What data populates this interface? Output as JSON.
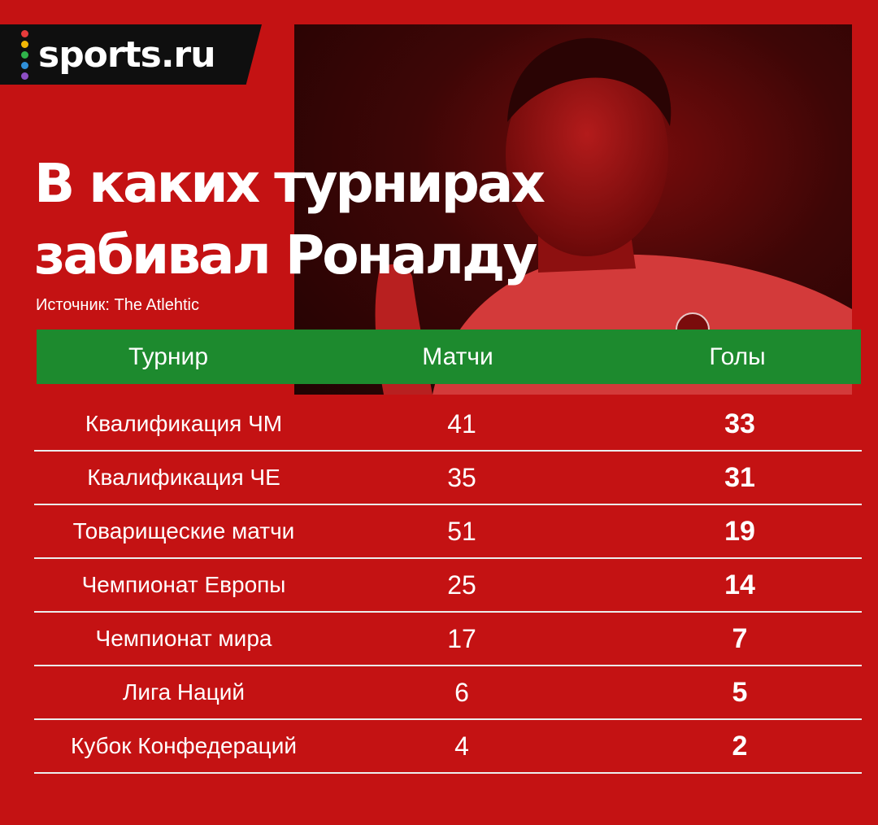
{
  "brand": {
    "logo_text": "sports.ru",
    "dot_colors": [
      "#e63b3b",
      "#f2b705",
      "#2fb34a",
      "#2f8fd8",
      "#8d4fc4"
    ]
  },
  "title": {
    "line1": "В каких турнирах",
    "line2": "забивал Роналду"
  },
  "source": "Источник: The Atlehtic",
  "table": {
    "headers": {
      "tournament": "Турнир",
      "matches": "Матчи",
      "goals": "Голы"
    },
    "rows": [
      {
        "tournament": "Квалификация ЧМ",
        "matches": "41",
        "goals": "33"
      },
      {
        "tournament": "Квалификация ЧЕ",
        "matches": "35",
        "goals": "31"
      },
      {
        "tournament": "Товарищеские матчи",
        "matches": "51",
        "goals": "19"
      },
      {
        "tournament": "Чемпионат Европы",
        "matches": "25",
        "goals": "14"
      },
      {
        "tournament": "Чемпионат мира",
        "matches": "17",
        "goals": "7"
      },
      {
        "tournament": "Лига Наций",
        "matches": "6",
        "goals": "5"
      },
      {
        "tournament": "Кубок Конфедераций",
        "matches": "4",
        "goals": "2"
      }
    ]
  },
  "colors": {
    "background": "#c41213",
    "header_green": "#1d8a2e",
    "logo_bar": "#0f0f0f"
  }
}
